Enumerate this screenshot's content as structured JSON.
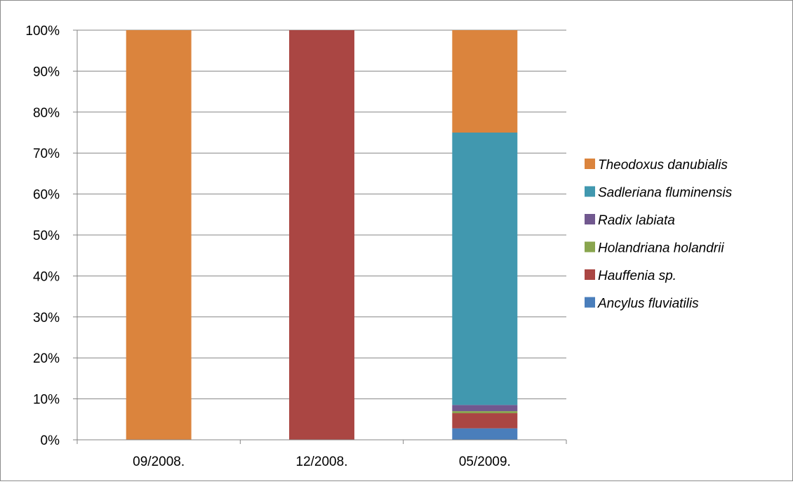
{
  "chart_data": {
    "type": "bar",
    "stacked": true,
    "percent": true,
    "categories": [
      "09/2008.",
      "12/2008.",
      "05/2009."
    ],
    "series": [
      {
        "name": "Ancylus fluviatilis",
        "color": "#4a7ebb",
        "values": [
          0,
          0,
          2.8
        ]
      },
      {
        "name": "Hauffenia sp.",
        "color": "#aa4643",
        "values": [
          0,
          100,
          3.7
        ]
      },
      {
        "name": "Holandriana holandrii",
        "color": "#89a54e",
        "values": [
          0,
          0,
          0.5
        ]
      },
      {
        "name": "Radix labiata",
        "color": "#71588f",
        "values": [
          0,
          0,
          1.5
        ]
      },
      {
        "name": "Sadleriana fluminensis",
        "color": "#4198af",
        "values": [
          0,
          0,
          66.5
        ]
      },
      {
        "name": "Theodoxus danubialis",
        "color": "#db843d",
        "values": [
          100,
          0,
          25
        ]
      }
    ],
    "ylim": [
      0,
      100
    ],
    "yticks": [
      "0%",
      "10%",
      "20%",
      "30%",
      "40%",
      "50%",
      "60%",
      "70%",
      "80%",
      "90%",
      "100%"
    ],
    "grid": true,
    "legend_position": "right",
    "legend_order": [
      "Theodoxus danubialis",
      "Sadleriana fluminensis",
      "Radix labiata",
      "Holandriana holandrii",
      "Hauffenia sp.",
      "Ancylus fluviatilis"
    ]
  }
}
